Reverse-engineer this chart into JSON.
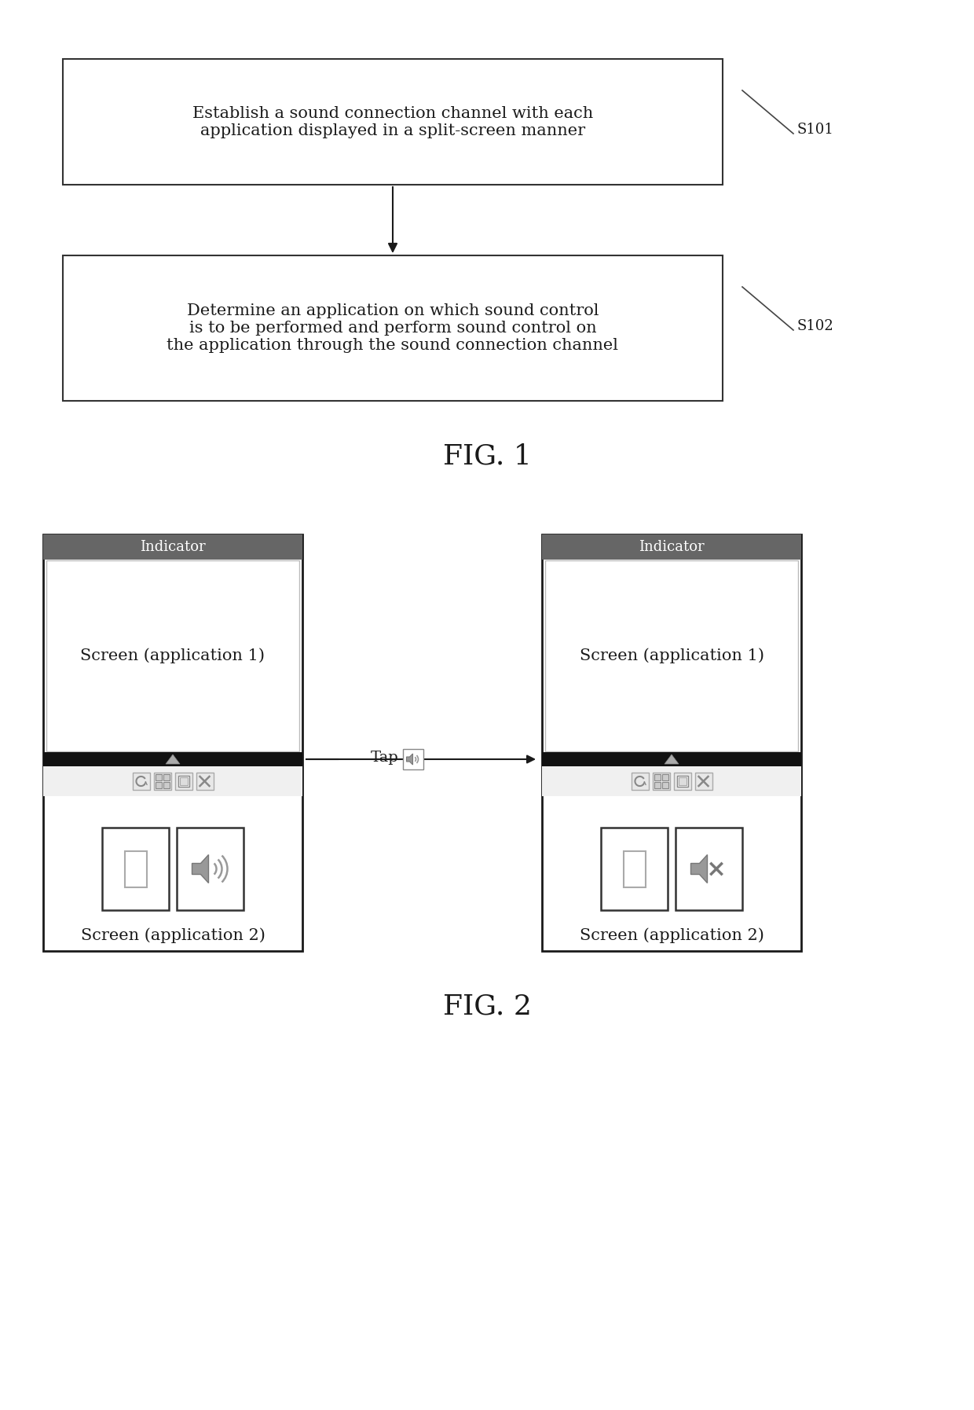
{
  "bg_color": "#ffffff",
  "fig1_box1_text": "Establish a sound connection channel with each\napplication displayed in a split-screen manner",
  "fig1_box2_text": "Determine an application on which sound control\nis to be performed and perform sound control on\nthe application through the sound connection channel",
  "fig1_label1": "S101",
  "fig1_label2": "S102",
  "fig1_caption": "FIG. 1",
  "fig2_caption": "FIG. 2",
  "indicator_text": "Indicator",
  "screen1_text": "Screen (application 1)",
  "screen2_text": "Screen (application 2)",
  "tap_text": "Tap",
  "indicator_bg": "#666666",
  "bar_color": "#111111",
  "font_size_box": 15,
  "font_size_label": 13,
  "font_size_caption": 26,
  "font_size_screen": 15,
  "font_size_indicator": 13,
  "font_size_tap": 14
}
